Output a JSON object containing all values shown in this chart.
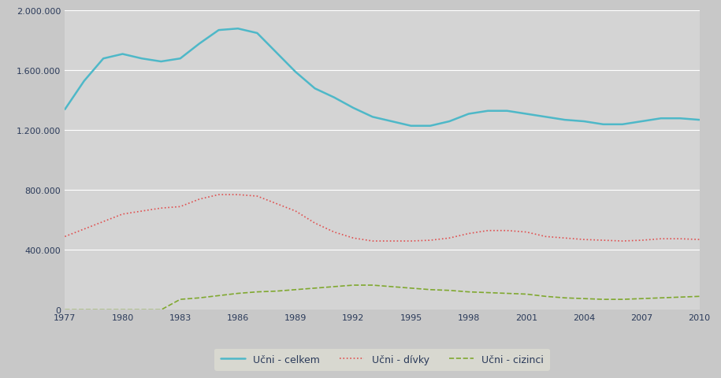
{
  "years": [
    1977,
    1978,
    1979,
    1980,
    1981,
    1982,
    1983,
    1984,
    1985,
    1986,
    1987,
    1988,
    1989,
    1990,
    1991,
    1992,
    1993,
    1994,
    1995,
    1996,
    1997,
    1998,
    1999,
    2000,
    2001,
    2002,
    2003,
    2004,
    2005,
    2006,
    2007,
    2008,
    2009,
    2010
  ],
  "celkem": [
    1340000,
    1530000,
    1680000,
    1710000,
    1680000,
    1660000,
    1680000,
    1780000,
    1870000,
    1880000,
    1850000,
    1720000,
    1590000,
    1480000,
    1420000,
    1350000,
    1290000,
    1260000,
    1230000,
    1230000,
    1260000,
    1310000,
    1330000,
    1330000,
    1310000,
    1290000,
    1270000,
    1260000,
    1240000,
    1240000,
    1260000,
    1280000,
    1280000,
    1270000
  ],
  "divky": [
    490000,
    540000,
    590000,
    640000,
    660000,
    680000,
    690000,
    740000,
    770000,
    770000,
    760000,
    710000,
    660000,
    580000,
    520000,
    480000,
    460000,
    460000,
    460000,
    465000,
    480000,
    510000,
    530000,
    530000,
    520000,
    490000,
    480000,
    470000,
    465000,
    460000,
    465000,
    475000,
    475000,
    470000
  ],
  "cizinci": [
    0,
    0,
    0,
    0,
    0,
    0,
    70000,
    80000,
    95000,
    110000,
    120000,
    125000,
    135000,
    145000,
    155000,
    165000,
    165000,
    155000,
    145000,
    135000,
    130000,
    120000,
    115000,
    110000,
    105000,
    90000,
    80000,
    75000,
    70000,
    70000,
    75000,
    80000,
    85000,
    90000
  ],
  "ylim": [
    0,
    2000000
  ],
  "yticks": [
    0,
    400000,
    800000,
    1200000,
    1600000,
    2000000
  ],
  "xticks": [
    1977,
    1980,
    1983,
    1986,
    1989,
    1992,
    1995,
    1998,
    2001,
    2004,
    2007,
    2010
  ],
  "color_celkem": "#4eb8c8",
  "color_divky": "#e05050",
  "color_cizinci": "#80a830",
  "bg_plot": "#d4d4d4",
  "bg_fig": "#c8c8c8",
  "legend_bg": "#d8d8d0",
  "label_celkem": "Učni - celkem",
  "label_divky": "Učni - dívky",
  "label_cizinci": "Učni - cizinci"
}
